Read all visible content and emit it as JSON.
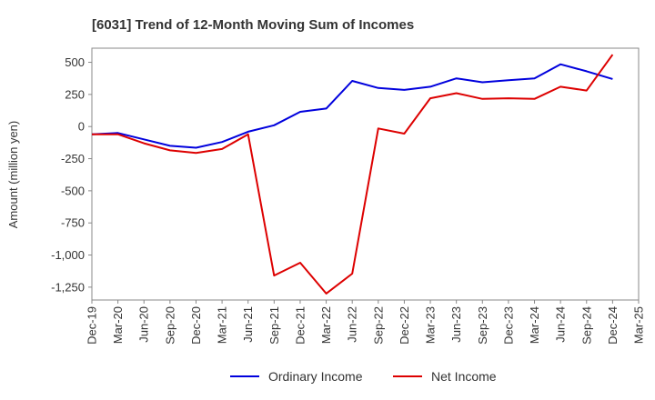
{
  "chart_data": {
    "type": "line",
    "title": "[6031]  Trend of 12-Month Moving Sum of Incomes",
    "xlabel": "",
    "ylabel": "Amount (million yen)",
    "ylim": [
      -1350,
      610
    ],
    "yticks": [
      500,
      250,
      0,
      -250,
      -500,
      -750,
      -1000,
      -1250
    ],
    "ytick_labels": [
      "500",
      "250",
      "0",
      "-250",
      "-500",
      "-750",
      "-1,000",
      "-1,250"
    ],
    "categories": [
      "Dec-19",
      "Mar-20",
      "Jun-20",
      "Sep-20",
      "Dec-20",
      "Mar-21",
      "Jun-21",
      "Sep-21",
      "Dec-21",
      "Mar-22",
      "Jun-22",
      "Sep-22",
      "Dec-22",
      "Mar-23",
      "Jun-23",
      "Sep-23",
      "Dec-23",
      "Mar-24",
      "Jun-24",
      "Sep-24",
      "Dec-24",
      "Mar-25"
    ],
    "series": [
      {
        "name": "Ordinary Income",
        "color": "#0000dd",
        "values": [
          -60,
          -50,
          -100,
          -150,
          -165,
          -120,
          -40,
          10,
          115,
          140,
          355,
          300,
          285,
          310,
          375,
          345,
          360,
          375,
          485,
          430,
          370,
          null
        ]
      },
      {
        "name": "Net Income",
        "color": "#dd0000",
        "values": [
          -60,
          -60,
          -130,
          -185,
          -205,
          -175,
          -60,
          -1160,
          -1060,
          -1300,
          -1145,
          -15,
          -55,
          220,
          260,
          215,
          220,
          215,
          310,
          280,
          560,
          null
        ]
      }
    ],
    "grid": true,
    "legend_position": "bottom-center"
  }
}
